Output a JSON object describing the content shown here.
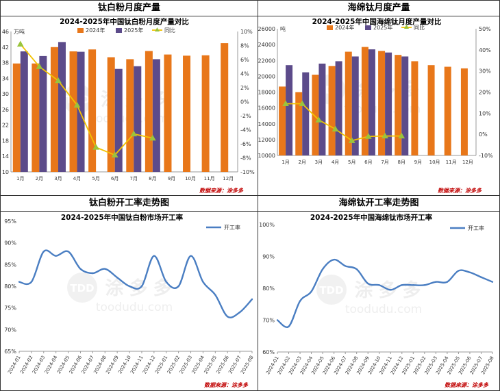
{
  "panels": {
    "tl": {
      "header": "钛白粉月度产量"
    },
    "tr": {
      "header": "海绵钛月度产量"
    },
    "bl": {
      "header": "钛白粉开工率走势图"
    },
    "br": {
      "header": "海绵钛开工率走势图"
    }
  },
  "watermark": {
    "logo": "TDD",
    "brand": "涂多多",
    "url": "toodudu.com"
  },
  "chart_data": [
    {
      "id": "tio2-output",
      "type": "bar",
      "title": "2024-2025年中国钛白粉月度产量对比",
      "unit": "万吨",
      "source": "数据来源：涂多多",
      "categories": [
        "1月",
        "2月",
        "3月",
        "4月",
        "5月",
        "6月",
        "7月",
        "8月",
        "9月",
        "10月",
        "11月",
        "12月"
      ],
      "series": [
        {
          "name": "2024年",
          "type": "bar",
          "color": "#E8771A",
          "values": [
            37.8,
            37.8,
            42,
            40.9,
            41.4,
            39.4,
            38.9,
            41,
            40.1,
            39.8,
            39.9,
            43
          ]
        },
        {
          "name": "2025年",
          "type": "bar",
          "color": "#5C4B8A",
          "values": [
            40.9,
            39.7,
            43.3,
            40.8,
            null,
            36.4,
            37.1,
            38.9,
            null,
            null,
            null,
            null
          ]
        },
        {
          "name": "同比",
          "type": "line",
          "axis": "right",
          "color": "#F2C200",
          "values": [
            8.2,
            5,
            3,
            -0.5,
            -6.5,
            -7.6,
            -4.6,
            -5.2,
            null,
            null,
            null,
            null
          ]
        }
      ],
      "ylim_left": [
        10,
        46
      ],
      "yticks_left": [
        "10",
        "14",
        "18",
        "22",
        "26",
        "30",
        "34",
        "38",
        "42",
        "46"
      ],
      "ylim_right": [
        -10,
        10
      ],
      "yticks_right": [
        "-10%",
        "-8%",
        "-6%",
        "-4%",
        "-2%",
        "0%",
        "2%",
        "4%",
        "6%",
        "8%",
        "10%"
      ]
    },
    {
      "id": "ti-sponge-output",
      "type": "bar",
      "title": "2024-2025年中国海绵钛月度产量对比",
      "unit": "吨",
      "source": "数据来源：涂多多",
      "categories": [
        "1月",
        "2月",
        "3月",
        "4月",
        "5月",
        "6月",
        "7月",
        "8月",
        "9月",
        "10月",
        "11月",
        "12月"
      ],
      "series": [
        {
          "name": "2024年",
          "type": "bar",
          "color": "#E8771A",
          "values": [
            18700,
            18000,
            20200,
            21300,
            23100,
            23700,
            23200,
            22700,
            21900,
            21400,
            21200,
            21000
          ]
        },
        {
          "name": "2025年",
          "type": "bar",
          "color": "#5C4B8A",
          "values": [
            21400,
            20500,
            21600,
            21900,
            22500,
            23400,
            23000,
            22500,
            null,
            null,
            null,
            null
          ]
        },
        {
          "name": "同比",
          "type": "line",
          "axis": "right",
          "color": "#F2C200",
          "values": [
            14.5,
            14.5,
            6.8,
            2.5,
            -3,
            -1,
            -0.8,
            -0.8,
            null,
            null,
            null,
            null
          ]
        }
      ],
      "ylim_left": [
        10000,
        26000
      ],
      "yticks_left": [
        "10000",
        "12000",
        "14000",
        "16000",
        "18000",
        "20000",
        "22000",
        "24000",
        "26000"
      ],
      "ylim_right": [
        -10,
        50
      ],
      "yticks_right": [
        "-10%",
        "0%",
        "10%",
        "20%",
        "30%",
        "40%",
        "50%"
      ]
    },
    {
      "id": "tio2-operating-rate",
      "type": "line",
      "title": "2024-2025年中国钛白粉市场开工率",
      "source": "数据来源：涂多多",
      "legend": "开工率",
      "color": "#4A7EC2",
      "x": [
        "2024-01",
        "2024-02",
        "2024-03",
        "2024-04",
        "2024-05",
        "2024-06",
        "2024-07",
        "2024-08",
        "2024-09",
        "2024-10",
        "2024-11",
        "2024-12",
        "2025-01",
        "2025-02",
        "2025-03",
        "2025-04",
        "2025-05",
        "2025-06",
        "2025-07",
        "2025-08"
      ],
      "values": [
        81,
        81,
        88,
        87,
        88,
        84,
        83,
        84,
        82,
        80,
        80,
        87,
        81,
        80,
        87,
        81,
        78,
        73,
        74,
        77
      ],
      "ylim": [
        65,
        95
      ],
      "yticks": [
        "65%",
        "70%",
        "75%",
        "80%",
        "85%",
        "90%",
        "95%"
      ]
    },
    {
      "id": "ti-sponge-operating-rate",
      "type": "line",
      "title": "2024-2025年中国海绵钛市场开工率",
      "source": "数据来源：涂多多",
      "legend": "开工率",
      "color": "#4A7EC2",
      "x": [
        "2024-01",
        "2024-02",
        "2024-03",
        "2024-04",
        "2024-05",
        "2024-06",
        "2024-07",
        "2024-08",
        "2024-09",
        "2024-10",
        "2024-11",
        "2024-12",
        "2025-01",
        "2025-02",
        "2025-03",
        "2025-04",
        "2025-05",
        "2025-06",
        "2025-07",
        "2025-08"
      ],
      "values": [
        70,
        68,
        76,
        79,
        86,
        89,
        87,
        86,
        81.5,
        81,
        79.5,
        81,
        81,
        81,
        82,
        82,
        85.5,
        85,
        83.5,
        82
      ],
      "ylim": [
        60,
        100
      ],
      "yticks": [
        "60%",
        "70%",
        "80%",
        "90%",
        "100%"
      ]
    }
  ]
}
